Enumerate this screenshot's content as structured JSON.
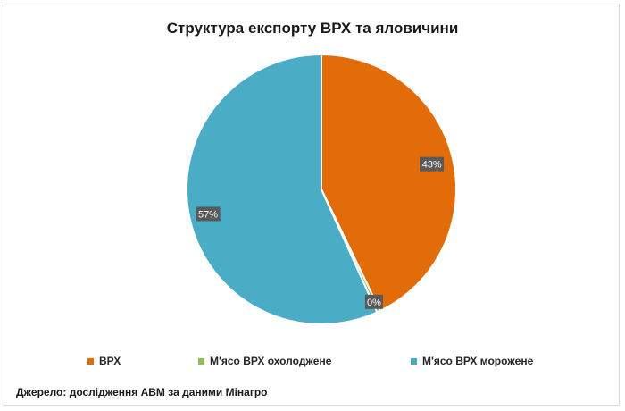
{
  "chart_data": {
    "type": "pie",
    "title": "Структура експорту ВРХ та яловичини",
    "slices": [
      {
        "name": "ВРХ",
        "value": 43,
        "label": "43%",
        "color": "#e36c0a"
      },
      {
        "name": "М'ясо ВРХ охолоджене",
        "value": 0.4,
        "label": "0%",
        "color": "#8fbf5a"
      },
      {
        "name": "М'ясо ВРХ морожене",
        "value": 57,
        "label": "57%",
        "color": "#4bacc6"
      }
    ],
    "legend_position": "bottom"
  },
  "source_note": "Джерело: дослідження АВМ за даними Мінагро"
}
